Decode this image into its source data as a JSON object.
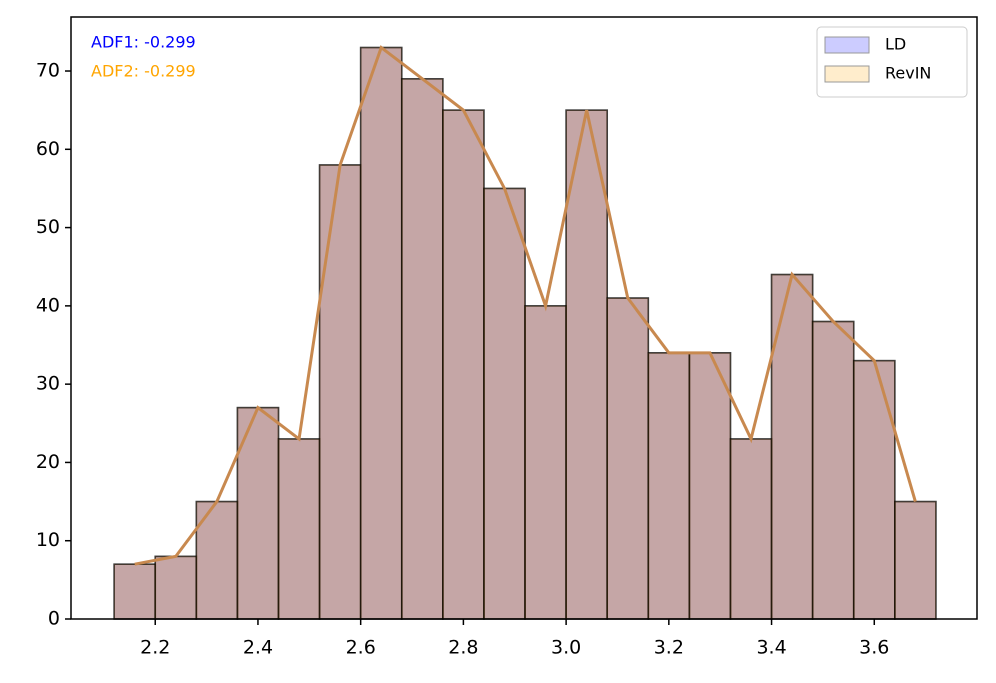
{
  "chart_data": {
    "type": "histogram",
    "bins": [
      2.12,
      2.2,
      2.28,
      2.36,
      2.44,
      2.52,
      2.6,
      2.68,
      2.76,
      2.84,
      2.92,
      3,
      3.08,
      3.16,
      3.24,
      3.32,
      3.4,
      3.48,
      3.56,
      3.64,
      3.72
    ],
    "series": [
      {
        "name": "LD",
        "color": "#0000ff",
        "values": [
          7,
          8,
          15,
          27,
          23,
          58,
          73,
          69,
          65,
          55,
          40,
          65,
          41,
          34,
          34,
          23,
          44,
          38,
          33,
          15
        ]
      },
      {
        "name": "RevIN",
        "color": "#ffa500",
        "values": [
          7,
          8,
          15,
          27,
          23,
          58,
          73,
          69,
          65,
          55,
          40,
          65,
          41,
          34,
          34,
          23,
          44,
          38,
          33,
          15
        ]
      }
    ],
    "line": {
      "color": "#c8894f",
      "x": [
        2.16,
        2.24,
        2.32,
        2.4,
        2.48,
        2.56,
        2.64,
        2.72,
        2.8,
        2.88,
        2.96,
        3.04,
        3.12,
        3.2,
        3.28,
        3.36,
        3.44,
        3.52,
        3.6,
        3.68
      ],
      "values": [
        7,
        8,
        15,
        27,
        23,
        58,
        73,
        69,
        65,
        55,
        40,
        65,
        41,
        34,
        34,
        23,
        44,
        38,
        33,
        15
      ]
    },
    "annotations": [
      {
        "text": "ADF1: -0.299",
        "color": "#0000ff"
      },
      {
        "text": "ADF2: -0.299",
        "color": "#ffa500"
      }
    ],
    "xlim": [
      2.036,
      3.8
    ],
    "ylim": [
      0,
      76.9
    ],
    "xticks": [
      2.2,
      2.4,
      2.6,
      2.8,
      {
        "value": 3,
        "label": "3.0"
      },
      3.2,
      3.4,
      3.6
    ],
    "yticks": [
      0,
      10,
      20,
      30,
      40,
      50,
      60,
      70
    ],
    "legend": "upper right"
  }
}
